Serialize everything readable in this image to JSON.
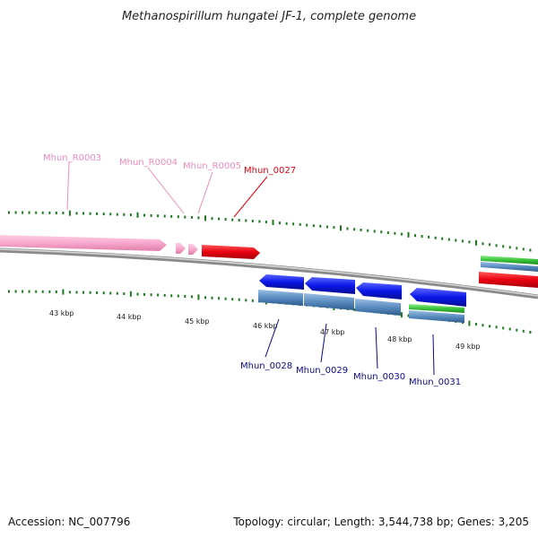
{
  "title": "Methanospirillum hungatei JF-1, complete genome",
  "footer": {
    "accession": "Accession: NC_007796",
    "summary": "Topology: circular; Length: 3,544,738 bp; Genes: 3,205"
  },
  "scale_labels": [
    "43 kbp",
    "44 kbp",
    "45 kbp",
    "46 kbp",
    "47 kbp",
    "48 kbp",
    "49 kbp"
  ],
  "features_top": [
    {
      "name": "Mhun_R0003",
      "type": "rRNA"
    },
    {
      "name": "Mhun_R0004",
      "type": "tRNA"
    },
    {
      "name": "Mhun_R0005",
      "type": "tRNA"
    },
    {
      "name": "Mhun_0027",
      "type": "CDS",
      "strand": "+"
    }
  ],
  "features_bottom": [
    {
      "name": "Mhun_0028",
      "type": "CDS",
      "strand": "-"
    },
    {
      "name": "Mhun_0029",
      "type": "CDS",
      "strand": "-"
    },
    {
      "name": "Mhun_0030",
      "type": "CDS",
      "strand": "-"
    },
    {
      "name": "Mhun_0031",
      "type": "CDS",
      "strand": "-"
    }
  ],
  "colors": {
    "rna": "#f7a8cc",
    "rna_label": "#f08cbc",
    "forward_cds": "#e8000f",
    "reverse_cds": "#0b17e8",
    "reverse_label": "#0b0b8c",
    "domain_blue": "#5a8cc0",
    "domain_green": "#3cc43c",
    "backbone": "#8a8a8a",
    "tick": "#1f7a1f"
  }
}
